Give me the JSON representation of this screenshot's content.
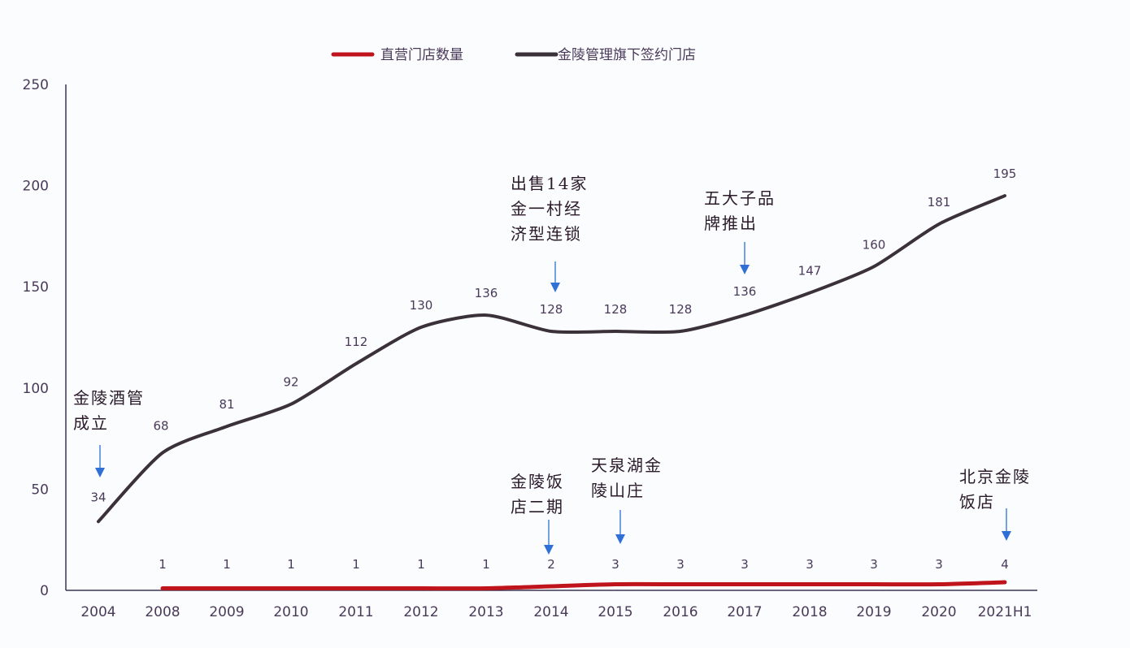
{
  "legend": {
    "items": [
      {
        "label": "直营门店数量",
        "color": "#c0141c"
      },
      {
        "label": "金陵管理旗下签约门店",
        "color": "#3a3238"
      }
    ]
  },
  "axes": {
    "y_ticks": [
      "0",
      "50",
      "100",
      "150",
      "200",
      "250"
    ],
    "x_ticks": [
      "2004",
      "2008",
      "2009",
      "2010",
      "2011",
      "2012",
      "2013",
      "2014",
      "2015",
      "2016",
      "2017",
      "2018",
      "2019",
      "2020",
      "2021H1"
    ]
  },
  "annotations": [
    {
      "lines": [
        "金陵酒管",
        "成立"
      ],
      "target": "2004",
      "series": "金陵管理旗下签约门店"
    },
    {
      "lines": [
        "出售14家",
        "金一村经",
        "济型连锁"
      ],
      "target": "2014",
      "series": "金陵管理旗下签约门店"
    },
    {
      "lines": [
        "五大子品",
        "牌推出"
      ],
      "target": "2017",
      "series": "金陵管理旗下签约门店"
    },
    {
      "lines": [
        "金陵饭",
        "店二期"
      ],
      "target": "2014",
      "series": "直营门店数量"
    },
    {
      "lines": [
        "天泉湖金",
        "陵山庄"
      ],
      "target": "2015",
      "series": "直营门店数量"
    },
    {
      "lines": [
        "北京金陵",
        "饭店"
      ],
      "target": "2021H1",
      "series": "直营门店数量"
    }
  ],
  "chart_data": {
    "type": "line",
    "title": "",
    "xlabel": "",
    "ylabel": "",
    "categories": [
      "2004",
      "2008",
      "2009",
      "2010",
      "2011",
      "2012",
      "2013",
      "2014",
      "2015",
      "2016",
      "2017",
      "2018",
      "2019",
      "2020",
      "2021H1"
    ],
    "series": [
      {
        "name": "直营门店数量",
        "color": "#c0141c",
        "values": [
          null,
          1,
          1,
          1,
          1,
          1,
          1,
          2,
          3,
          3,
          3,
          3,
          3,
          3,
          4
        ]
      },
      {
        "name": "金陵管理旗下签约门店",
        "color": "#3a3238",
        "values": [
          34,
          68,
          81,
          92,
          112,
          130,
          136,
          128,
          128,
          128,
          136,
          147,
          160,
          181,
          195
        ]
      }
    ],
    "ylim": [
      0,
      250
    ],
    "yticks": [
      0,
      50,
      100,
      150,
      200,
      250
    ],
    "grid": false,
    "legend_position": "top",
    "annotation_arrow_color": "#2f6fd6"
  }
}
